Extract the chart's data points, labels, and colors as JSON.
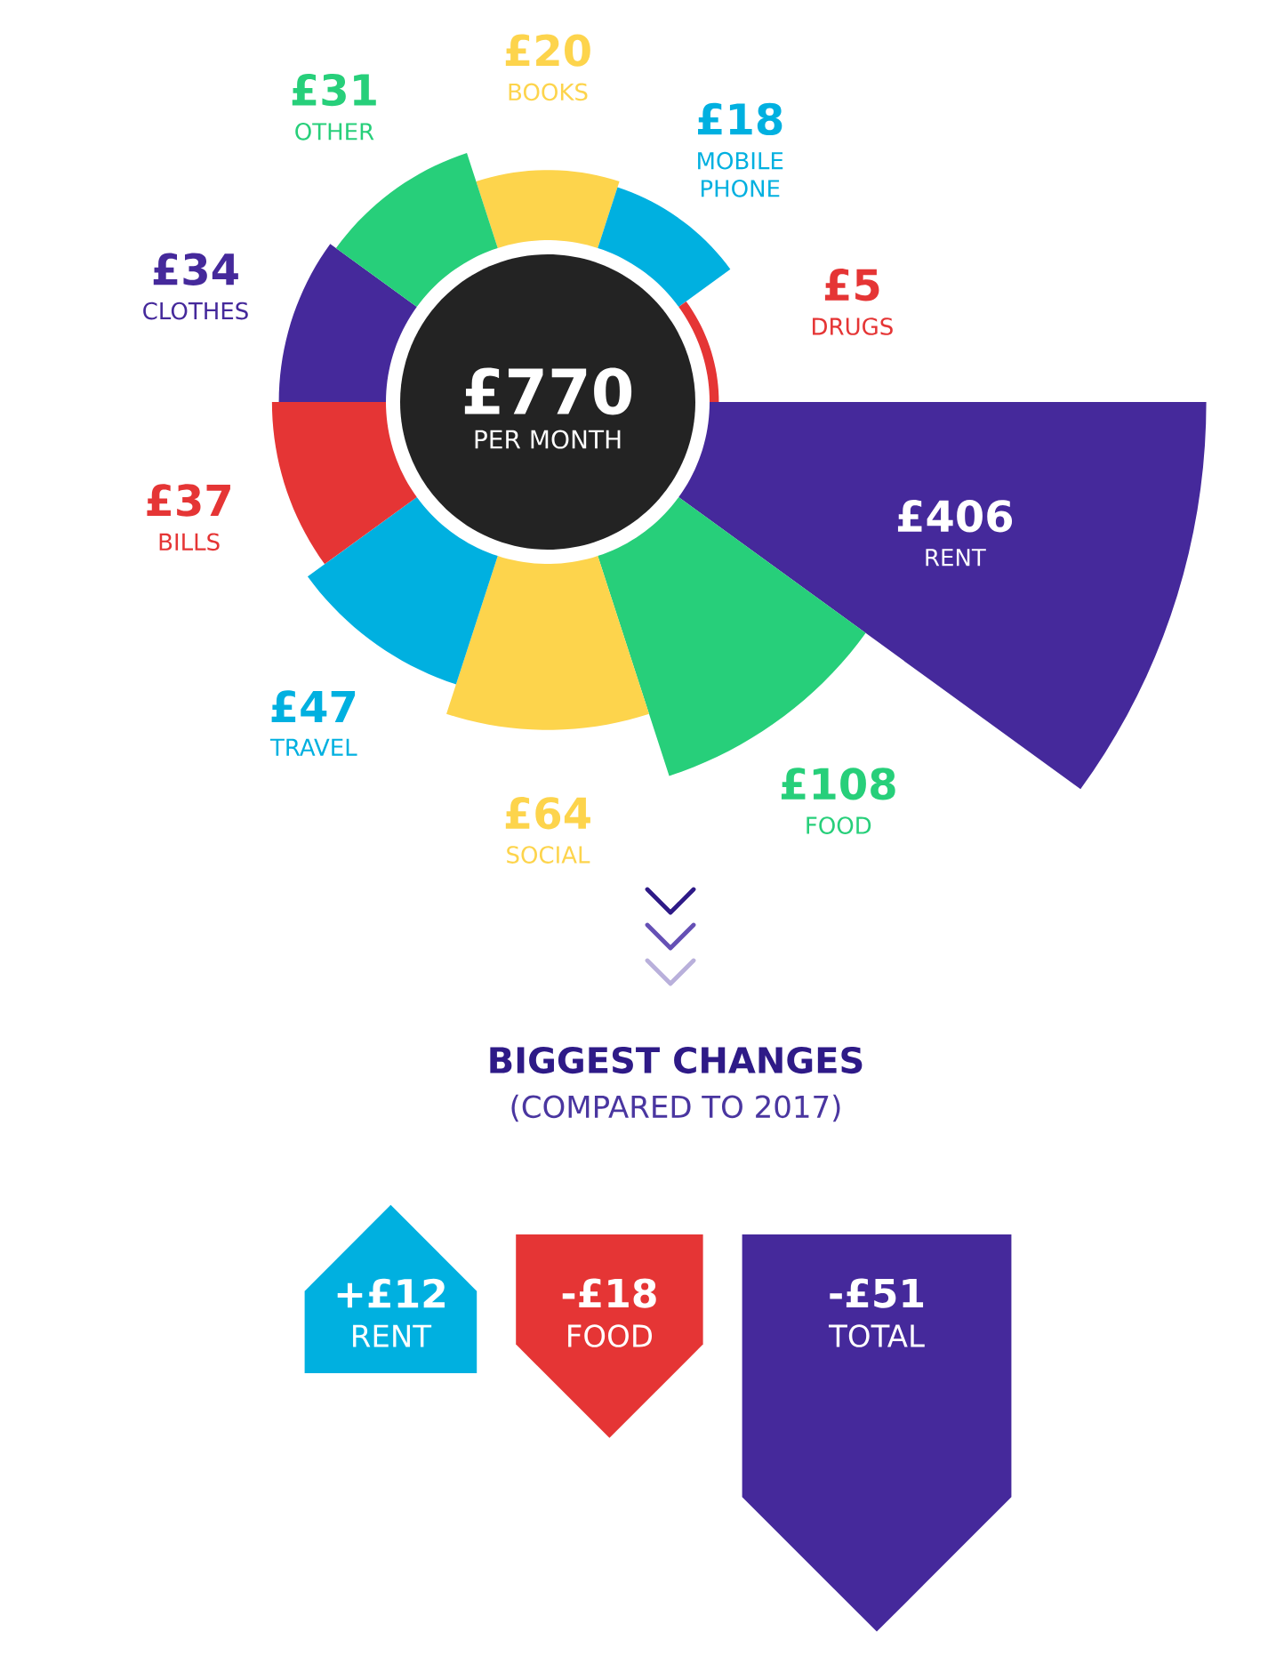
{
  "chart_data": [
    {
      "type": "other",
      "categories": [
        "BOOKS",
        "MOBILE PHONE",
        "DRUGS",
        "RENT",
        "FOOD",
        "SOCIAL",
        "TRAVEL",
        "BILLS",
        "CLOTHES",
        "OTHER"
      ],
      "values": [
        20,
        18,
        5,
        406,
        108,
        64,
        47,
        37,
        34,
        31
      ],
      "value_labels": [
        "£20",
        "£18",
        "£5",
        "£406",
        "£108",
        "£64",
        "£47",
        "£37",
        "£34",
        "£31"
      ],
      "colors": [
        "#fdd44c",
        "#00b0e0",
        "#e53535",
        "#45299b",
        "#27cf7a",
        "#fdd44c",
        "#00b0e0",
        "#e53535",
        "#45299b",
        "#27cf7a"
      ],
      "annotations": [
        "£770",
        "PER MONTH"
      ]
    },
    {
      "type": "other",
      "title": "BIGGEST CHANGES",
      "subtitle": "(COMPARED TO 2017)",
      "categories": [
        "RENT",
        "FOOD",
        "TOTAL"
      ],
      "values": [
        12,
        -18,
        -51
      ],
      "value_labels": [
        "+£12",
        "-£18",
        "-£51"
      ],
      "colors": [
        "#00b0e0",
        "#e53535",
        "#45299b"
      ]
    }
  ]
}
